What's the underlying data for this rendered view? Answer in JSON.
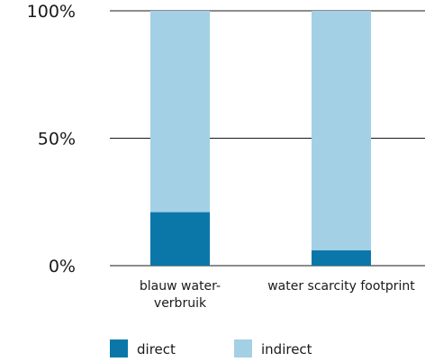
{
  "chart_data": {
    "type": "bar",
    "stacked": true,
    "categories": [
      [
        "blauw water-",
        "verbruik"
      ],
      [
        "water scarcity footprint"
      ]
    ],
    "series": [
      {
        "name": "direct",
        "values": [
          21,
          6
        ],
        "color": "#0a77a8"
      },
      {
        "name": "indirect",
        "values": [
          79,
          94
        ],
        "color": "#a3d0e5"
      }
    ],
    "ylim": [
      0,
      100
    ],
    "yticks": [
      0,
      50,
      100
    ],
    "ytick_labels": [
      "0%",
      "50%",
      "100%"
    ],
    "grid": true,
    "legend_position": "bottom-left"
  }
}
